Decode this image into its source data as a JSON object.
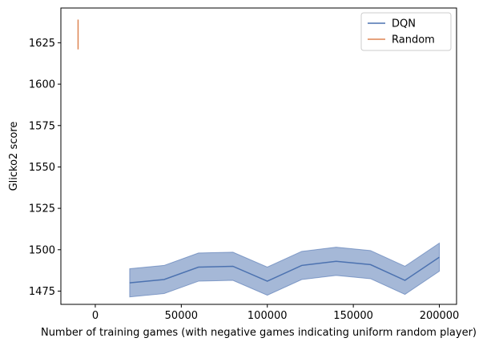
{
  "chart_data": {
    "type": "line",
    "xlabel": "Number of training games (with negative games indicating uniform random player)",
    "ylabel": "Glicko2 score",
    "xlim": [
      -20000,
      210000
    ],
    "ylim": [
      1467,
      1646
    ],
    "xticks": [
      0,
      50000,
      100000,
      150000,
      200000
    ],
    "yticks": [
      1475,
      1500,
      1525,
      1550,
      1575,
      1600,
      1625
    ],
    "grid": false,
    "legend_position": "top-right",
    "series": [
      {
        "name": "DQN",
        "color": "#4c72b0",
        "x": [
          20000,
          40000,
          60000,
          80000,
          100000,
          120000,
          140000,
          160000,
          180000,
          200000
        ],
        "y": [
          1480,
          1482,
          1489.5,
          1490,
          1481,
          1490.5,
          1493,
          1491,
          1481.5,
          1495.5
        ],
        "lower": [
          1471.5,
          1473.5,
          1481,
          1481.5,
          1472.5,
          1482,
          1484.5,
          1482.5,
          1473,
          1487
        ],
        "upper": [
          1488.5,
          1490.5,
          1498,
          1498.5,
          1489.5,
          1499,
          1501.5,
          1499.5,
          1490,
          1504
        ]
      },
      {
        "name": "Random",
        "color": "#dd8452",
        "x": [
          -10000,
          -10000
        ],
        "y": [
          1621,
          1639
        ]
      }
    ]
  }
}
